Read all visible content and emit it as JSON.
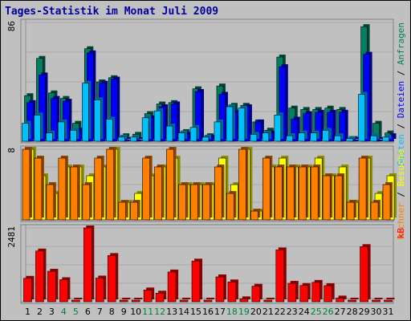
{
  "title": "Tages-Statistik im Monat Juli 2009",
  "colors": {
    "background": "#c0c0c0",
    "title": "#0000a0",
    "anfragen": "#008060",
    "dateien": "#0000ff",
    "seiten": "#00c0ff",
    "besuche": "#ffff00",
    "rechner": "#ff8000",
    "kb": "#ff0000",
    "weekday_label": "#000000",
    "weekend_label": "#008040"
  },
  "chart_data": [
    {
      "type": "bar",
      "panel": "top",
      "y_axis_label": "86",
      "ylim": [
        0,
        86
      ],
      "categories": [
        "1",
        "2",
        "3",
        "4",
        "5",
        "6",
        "7",
        "8",
        "9",
        "10",
        "11",
        "12",
        "13",
        "14",
        "15",
        "16",
        "17",
        "18",
        "19",
        "20",
        "21",
        "22",
        "23",
        "24",
        "25",
        "26",
        "27",
        "28",
        "29",
        "30",
        "31"
      ],
      "series": [
        {
          "name": "Anfragen",
          "color": "anfragen",
          "values": [
            33,
            60,
            35,
            31,
            13,
            67,
            43,
            46,
            4,
            5,
            20,
            27,
            28,
            7,
            38,
            4,
            40,
            26,
            26,
            14,
            8,
            61,
            24,
            23,
            23,
            24,
            23,
            2,
            83,
            13,
            6
          ]
        },
        {
          "name": "Dateien",
          "color": "dateien",
          "values": [
            28,
            48,
            31,
            29,
            8,
            64,
            42,
            45,
            0,
            0,
            17,
            25,
            27,
            5,
            36,
            3,
            34,
            21,
            25,
            14,
            6,
            54,
            16,
            20,
            21,
            21,
            21,
            0,
            63,
            0,
            4
          ]
        },
        {
          "name": "Seiten",
          "color": "seiten",
          "values": [
            13,
            19,
            6,
            14,
            8,
            42,
            30,
            16,
            3,
            3,
            17,
            22,
            11,
            6,
            10,
            3,
            14,
            25,
            24,
            5,
            6,
            19,
            4,
            6,
            6,
            8,
            4,
            2,
            34,
            4,
            3
          ]
        }
      ],
      "legend": [
        "Anfragen",
        "Dateien",
        "Seiten"
      ]
    },
    {
      "type": "bar",
      "panel": "middle",
      "y_axis_label": "8",
      "ylim": [
        0,
        8
      ],
      "categories": [
        "1",
        "2",
        "3",
        "4",
        "5",
        "6",
        "7",
        "8",
        "9",
        "10",
        "11",
        "12",
        "13",
        "14",
        "15",
        "16",
        "17",
        "18",
        "19",
        "20",
        "21",
        "22",
        "23",
        "24",
        "25",
        "26",
        "27",
        "28",
        "29",
        "30",
        "31"
      ],
      "series": [
        {
          "name": "Besuche",
          "color": "besuche",
          "values": [
            8,
            5,
            3,
            6,
            6,
            5,
            6,
            8,
            2,
            3,
            5,
            6,
            7,
            4,
            4,
            4,
            7,
            4,
            8,
            1,
            6,
            7,
            6,
            6,
            7,
            5,
            6,
            2,
            7,
            3,
            5
          ]
        },
        {
          "name": "Rechner",
          "color": "rechner",
          "values": [
            8,
            7,
            4,
            7,
            6,
            4,
            7,
            8,
            2,
            2,
            7,
            6,
            8,
            4,
            4,
            4,
            6,
            3,
            8,
            1,
            7,
            6,
            6,
            6,
            6,
            5,
            5,
            2,
            7,
            2,
            4
          ]
        }
      ],
      "legend": [
        "Besuche",
        "Rechner"
      ]
    },
    {
      "type": "bar",
      "panel": "bottom",
      "y_axis_label": "2481",
      "ylim": [
        0,
        2481
      ],
      "categories": [
        "1",
        "2",
        "3",
        "4",
        "5",
        "6",
        "7",
        "8",
        "9",
        "10",
        "11",
        "12",
        "13",
        "14",
        "15",
        "16",
        "17",
        "18",
        "19",
        "20",
        "21",
        "22",
        "23",
        "24",
        "25",
        "26",
        "27",
        "28",
        "29",
        "30",
        "31"
      ],
      "weekend_days": [
        "4",
        "5",
        "11",
        "12",
        "18",
        "19",
        "25",
        "26"
      ],
      "series": [
        {
          "name": "kB",
          "color": "kb",
          "values": [
            788,
            1705,
            1025,
            741,
            50,
            2481,
            796,
            1553,
            0,
            0,
            396,
            289,
            1000,
            0,
            1366,
            0,
            836,
            666,
            98,
            521,
            0,
            1743,
            620,
            547,
            651,
            541,
            124,
            0,
            1853,
            0,
            54
          ]
        }
      ],
      "legend": [
        "kB"
      ]
    }
  ]
}
